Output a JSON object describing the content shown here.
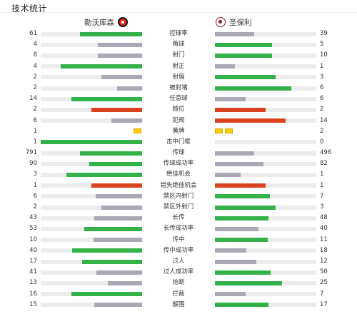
{
  "header": {
    "title": "技术统计"
  },
  "teams": {
    "home": {
      "name": "勒沃库森",
      "crest_icon": "bayer-leverkusen-crest-icon"
    },
    "away": {
      "name": "圣保利",
      "crest_icon": "st-pauli-crest-icon"
    }
  },
  "colors": {
    "higher": "#33b24a",
    "lower": "#a9a9b5",
    "negative": "#d9411f",
    "track": "#ececec",
    "card": "#ffcc00"
  },
  "stats": [
    {
      "label": "控球率",
      "home": "61",
      "away": "39",
      "home_fill": 0.61,
      "away_fill": 0.39,
      "home_color": "higher",
      "away_color": "lower"
    },
    {
      "label": "角球",
      "home": "4",
      "away": "5",
      "home_fill": 0.44,
      "away_fill": 0.56,
      "home_color": "lower",
      "away_color": "higher"
    },
    {
      "label": "射门",
      "home": "8",
      "away": "10",
      "home_fill": 0.44,
      "away_fill": 0.56,
      "home_color": "lower",
      "away_color": "higher"
    },
    {
      "label": "射正",
      "home": "4",
      "away": "1",
      "home_fill": 0.8,
      "away_fill": 0.2,
      "home_color": "higher",
      "away_color": "lower"
    },
    {
      "label": "射偏",
      "home": "2",
      "away": "3",
      "home_fill": 0.4,
      "away_fill": 0.6,
      "home_color": "lower",
      "away_color": "higher"
    },
    {
      "label": "被封堵",
      "home": "2",
      "away": "6",
      "home_fill": 0.25,
      "away_fill": 0.75,
      "home_color": "lower",
      "away_color": "higher"
    },
    {
      "label": "任意球",
      "home": "14",
      "away": "6",
      "home_fill": 0.7,
      "away_fill": 0.3,
      "home_color": "higher",
      "away_color": "lower"
    },
    {
      "label": "越位",
      "home": "2",
      "away": "2",
      "home_fill": 0.5,
      "away_fill": 0.5,
      "home_color": "negative",
      "away_color": "negative"
    },
    {
      "label": "犯规",
      "home": "6",
      "away": "14",
      "home_fill": 0.3,
      "away_fill": 0.7,
      "home_color": "lower",
      "away_color": "negative"
    },
    {
      "label": "黄牌",
      "home": "1",
      "away": "2",
      "home_cards": 1,
      "away_cards": 2
    },
    {
      "label": "击中门框",
      "home": "1",
      "away": "0",
      "home_fill": 1.0,
      "away_fill": 0.0,
      "home_color": "higher",
      "away_color": "lower"
    },
    {
      "label": "传球",
      "home": "791",
      "away": "496",
      "home_fill": 0.61,
      "away_fill": 0.39,
      "home_color": "higher",
      "away_color": "lower"
    },
    {
      "label": "传球成功率",
      "home": "90",
      "away": "82",
      "home_fill": 0.52,
      "away_fill": 0.48,
      "home_color": "higher",
      "away_color": "lower"
    },
    {
      "label": "绝佳机会",
      "home": "3",
      "away": "1",
      "home_fill": 0.75,
      "away_fill": 0.25,
      "home_color": "higher",
      "away_color": "lower"
    },
    {
      "label": "错失绝佳机会",
      "home": "1",
      "away": "1",
      "home_fill": 0.5,
      "away_fill": 0.5,
      "home_color": "negative",
      "away_color": "negative"
    },
    {
      "label": "禁区内射门",
      "home": "6",
      "away": "7",
      "home_fill": 0.46,
      "away_fill": 0.54,
      "home_color": "lower",
      "away_color": "higher"
    },
    {
      "label": "禁区外射门",
      "home": "2",
      "away": "3",
      "home_fill": 0.4,
      "away_fill": 0.6,
      "home_color": "lower",
      "away_color": "higher"
    },
    {
      "label": "长传",
      "home": "43",
      "away": "48",
      "home_fill": 0.47,
      "away_fill": 0.53,
      "home_color": "lower",
      "away_color": "higher"
    },
    {
      "label": "长传成功率",
      "home": "53",
      "away": "40",
      "home_fill": 0.57,
      "away_fill": 0.43,
      "home_color": "higher",
      "away_color": "lower"
    },
    {
      "label": "传中",
      "home": "10",
      "away": "11",
      "home_fill": 0.48,
      "away_fill": 0.52,
      "home_color": "lower",
      "away_color": "higher"
    },
    {
      "label": "传中成功率",
      "home": "40",
      "away": "18",
      "home_fill": 0.69,
      "away_fill": 0.31,
      "home_color": "higher",
      "away_color": "lower"
    },
    {
      "label": "过人",
      "home": "17",
      "away": "12",
      "home_fill": 0.59,
      "away_fill": 0.41,
      "home_color": "higher",
      "away_color": "lower"
    },
    {
      "label": "过人成功率",
      "home": "41",
      "away": "50",
      "home_fill": 0.45,
      "away_fill": 0.55,
      "home_color": "lower",
      "away_color": "higher"
    },
    {
      "label": "抢断",
      "home": "13",
      "away": "25",
      "home_fill": 0.34,
      "away_fill": 0.66,
      "home_color": "lower",
      "away_color": "higher"
    },
    {
      "label": "拦截",
      "home": "16",
      "away": "7",
      "home_fill": 0.7,
      "away_fill": 0.3,
      "home_color": "higher",
      "away_color": "lower"
    },
    {
      "label": "解围",
      "home": "15",
      "away": "17",
      "home_fill": 0.47,
      "away_fill": 0.53,
      "home_color": "lower",
      "away_color": "higher"
    }
  ]
}
